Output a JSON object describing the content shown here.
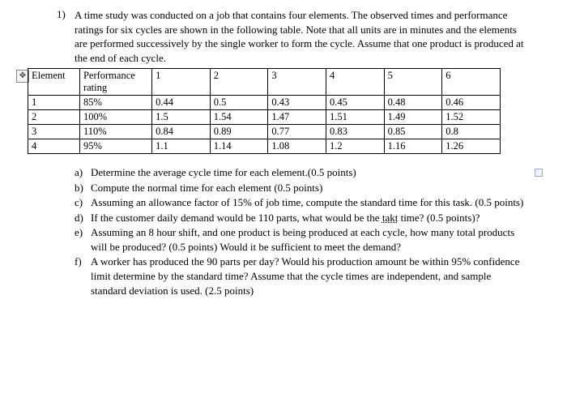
{
  "question": {
    "number": "1)",
    "intro": "A time study was conducted on a job that contains four elements. The observed times and performance ratings for six cycles are shown in the following table. Note that all units are in minutes and the elements are performed successively by the single worker to form the cycle. Assume that one product is produced at the end of each cycle."
  },
  "table": {
    "headers": {
      "element": "Element",
      "perf": "Performance rating",
      "c1": "1",
      "c2": "2",
      "c3": "3",
      "c4": "4",
      "c5": "5",
      "c6": "6"
    },
    "rows": [
      {
        "el": "1",
        "perf": "85%",
        "c": [
          "0.44",
          "0.5",
          "0.43",
          "0.45",
          "0.48",
          "0.46"
        ]
      },
      {
        "el": "2",
        "perf": "100%",
        "c": [
          "1.5",
          "1.54",
          "1.47",
          "1.51",
          "1.49",
          "1.52"
        ]
      },
      {
        "el": "3",
        "perf": "110%",
        "c": [
          "0.84",
          "0.89",
          "0.77",
          "0.83",
          "0.85",
          "0.8"
        ]
      },
      {
        "el": "4",
        "perf": "95%",
        "c": [
          "1.1",
          "1.14",
          "1.08",
          "1.2",
          "1.16",
          "1.26"
        ]
      }
    ]
  },
  "parts": {
    "a": {
      "l": "a)",
      "t": "Determine the average cycle time for each element.(0.5 points)"
    },
    "b": {
      "l": "b)",
      "t": "Compute the normal time for each element (0.5 points)"
    },
    "c": {
      "l": "c)",
      "t": "Assuming an allowance factor of 15% of job time, compute the standard time for this task. (0.5 points)"
    },
    "d": {
      "l": "d)",
      "t_pre": "If the customer daily demand would be 110 parts, what would be the ",
      "takt": "takt",
      "t_post": " time? (0.5 points)?"
    },
    "e": {
      "l": "e)",
      "t": "Assuming an 8 hour shift, and one product is being produced at each cycle, how many total products will be produced? (0.5 points) Would it be sufficient to meet the demand?"
    },
    "f": {
      "l": "f)",
      "t": "A worker has produced the 90 parts per day? Would his production amount be within 95% confidence limit determine by the standard time?  Assume that the cycle times are independent, and sample standard deviation is used. (2.5 points)"
    }
  }
}
